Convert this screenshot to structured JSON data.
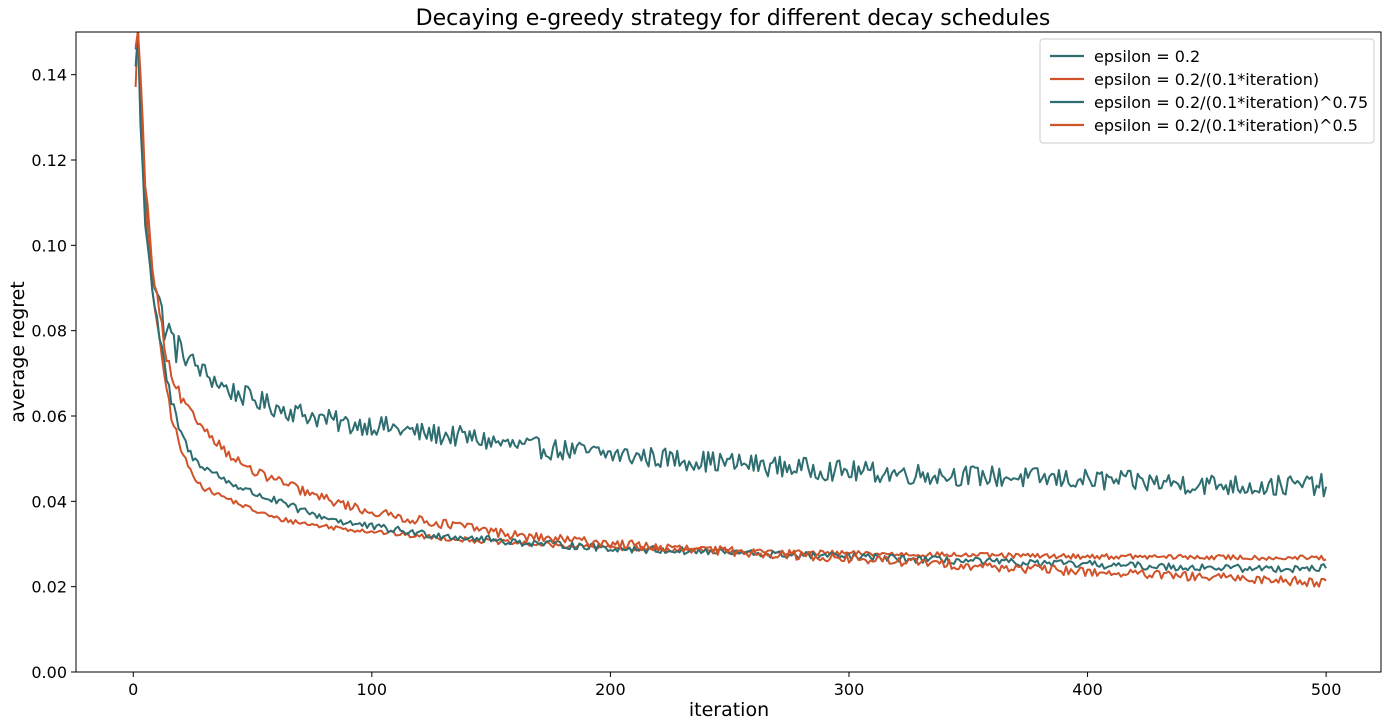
{
  "chart_data": {
    "type": "line",
    "title": "Decaying e-greedy strategy for different decay schedules",
    "xlabel": "iteration",
    "ylabel": "average regret",
    "xlim": [
      -24,
      523
    ],
    "ylim": [
      0.0,
      0.15
    ],
    "xticks": [
      0,
      100,
      200,
      300,
      400,
      500
    ],
    "yticks": [
      0.0,
      0.02,
      0.04,
      0.06,
      0.08,
      0.1,
      0.12,
      0.14
    ],
    "ytick_labels": [
      "0.00",
      "0.02",
      "0.04",
      "0.06",
      "0.08",
      "0.10",
      "0.12",
      "0.14"
    ],
    "grid": false,
    "legend_position": "top-right",
    "series": [
      {
        "name": "epsilon = 0.2",
        "color": "#2e6e71",
        "noise": 0.0025,
        "x": [
          1,
          2,
          3,
          5,
          8,
          12,
          16,
          20,
          30,
          40,
          50,
          60,
          75,
          90,
          100,
          120,
          140,
          160,
          180,
          200,
          225,
          250,
          275,
          300,
          325,
          350,
          375,
          400,
          425,
          450,
          475,
          498,
          500
        ],
        "y": [
          0.144,
          0.152,
          0.135,
          0.11,
          0.095,
          0.083,
          0.078,
          0.075,
          0.07,
          0.066,
          0.064,
          0.062,
          0.06,
          0.058,
          0.058,
          0.056,
          0.055,
          0.053,
          0.052,
          0.051,
          0.05,
          0.049,
          0.048,
          0.047,
          0.0465,
          0.046,
          0.0455,
          0.045,
          0.0445,
          0.044,
          0.0435,
          0.044,
          0.041
        ]
      },
      {
        "name": "epsilon = 0.2/(0.1*iteration)",
        "color": "#d0532a",
        "noise": 0.0006,
        "x": [
          1,
          2,
          3,
          5,
          8,
          12,
          16,
          20,
          25,
          30,
          40,
          50,
          60,
          75,
          90,
          100,
          120,
          140,
          160,
          180,
          200,
          225,
          250,
          275,
          300,
          325,
          350,
          375,
          400,
          425,
          450,
          475,
          500
        ],
        "y": [
          0.138,
          0.151,
          0.13,
          0.108,
          0.09,
          0.073,
          0.06,
          0.052,
          0.046,
          0.043,
          0.0405,
          0.038,
          0.036,
          0.0345,
          0.0335,
          0.033,
          0.0318,
          0.031,
          0.0302,
          0.0296,
          0.0292,
          0.0287,
          0.0283,
          0.028,
          0.0278,
          0.0276,
          0.0274,
          0.0272,
          0.0271,
          0.027,
          0.0269,
          0.0268,
          0.0267
        ]
      },
      {
        "name": "epsilon = 0.2/(0.1*iteration)^0.75",
        "color": "#2e6e71",
        "noise": 0.0009,
        "x": [
          1,
          2,
          3,
          5,
          8,
          12,
          16,
          20,
          25,
          30,
          40,
          50,
          60,
          75,
          90,
          100,
          120,
          140,
          160,
          180,
          200,
          225,
          250,
          275,
          300,
          325,
          350,
          375,
          400,
          425,
          450,
          475,
          500
        ],
        "y": [
          0.142,
          0.15,
          0.128,
          0.106,
          0.09,
          0.075,
          0.063,
          0.056,
          0.05,
          0.048,
          0.0445,
          0.042,
          0.04,
          0.037,
          0.035,
          0.034,
          0.0325,
          0.0315,
          0.0305,
          0.0298,
          0.029,
          0.0285,
          0.028,
          0.0274,
          0.027,
          0.0265,
          0.026,
          0.0255,
          0.0252,
          0.0248,
          0.0245,
          0.0242,
          0.0244
        ]
      },
      {
        "name": "epsilon = 0.2/(0.1*iteration)^0.5",
        "color": "#d0532a",
        "noise": 0.0011,
        "x": [
          1,
          2,
          3,
          5,
          8,
          12,
          16,
          20,
          25,
          30,
          40,
          50,
          60,
          75,
          90,
          100,
          120,
          140,
          160,
          180,
          200,
          225,
          250,
          275,
          300,
          325,
          350,
          375,
          400,
          425,
          450,
          475,
          500
        ],
        "y": [
          0.145,
          0.152,
          0.14,
          0.115,
          0.095,
          0.08,
          0.068,
          0.064,
          0.06,
          0.057,
          0.051,
          0.047,
          0.045,
          0.0415,
          0.039,
          0.0375,
          0.0355,
          0.034,
          0.032,
          0.031,
          0.0302,
          0.029,
          0.0283,
          0.0275,
          0.0265,
          0.0258,
          0.025,
          0.0242,
          0.0235,
          0.0228,
          0.0222,
          0.0217,
          0.021
        ]
      }
    ]
  }
}
